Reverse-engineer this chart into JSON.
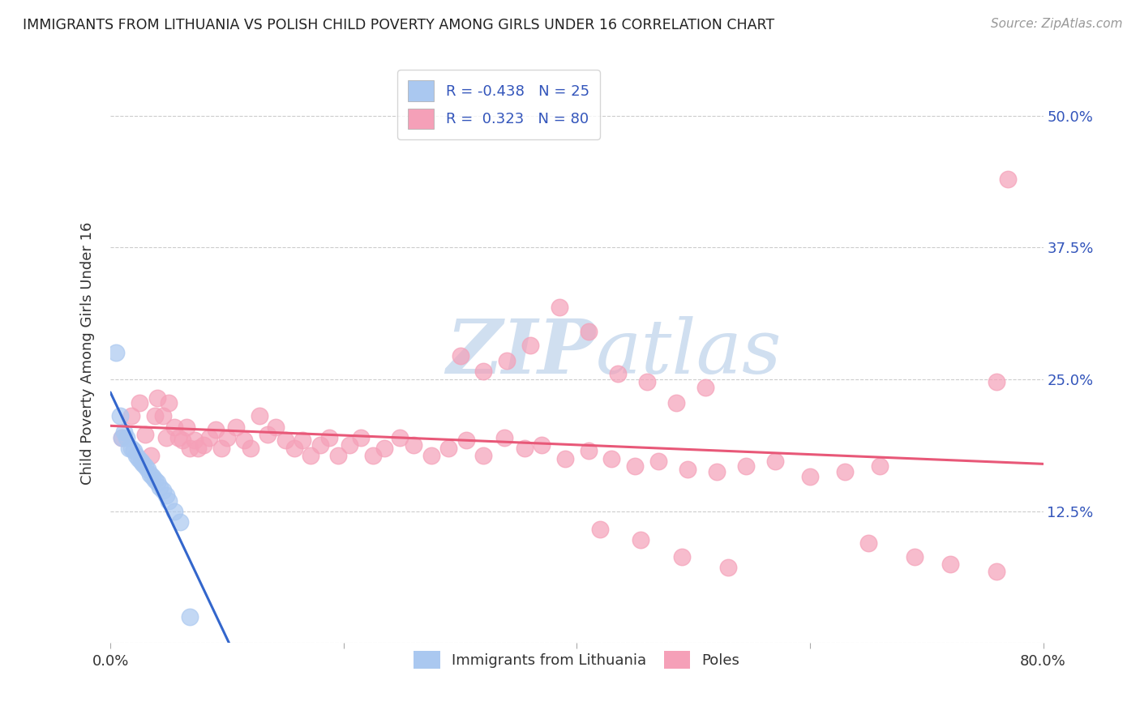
{
  "title": "IMMIGRANTS FROM LITHUANIA VS POLISH CHILD POVERTY AMONG GIRLS UNDER 16 CORRELATION CHART",
  "source": "Source: ZipAtlas.com",
  "ylabel": "Child Poverty Among Girls Under 16",
  "xlabel_legend_1": "Immigrants from Lithuania",
  "xlabel_legend_2": "Poles",
  "r_lithuania": -0.438,
  "n_lithuania": 25,
  "r_poles": 0.323,
  "n_poles": 80,
  "xlim": [
    0.0,
    0.8
  ],
  "ylim": [
    0.0,
    0.55
  ],
  "color_lithuania": "#aac8f0",
  "color_poles": "#f5a0b8",
  "line_color_lithuania": "#3366cc",
  "line_color_poles": "#e85878",
  "watermark_color": "#d0dff0",
  "background_color": "#ffffff",
  "legend_text_color": "#3355bb",
  "lithuania_x": [
    0.005,
    0.008,
    0.01,
    0.012,
    0.014,
    0.016,
    0.018,
    0.02,
    0.022,
    0.024,
    0.026,
    0.028,
    0.03,
    0.032,
    0.034,
    0.036,
    0.038,
    0.04,
    0.042,
    0.045,
    0.048,
    0.05,
    0.055,
    0.06,
    0.068
  ],
  "lithuania_y": [
    0.275,
    0.215,
    0.195,
    0.2,
    0.195,
    0.185,
    0.185,
    0.182,
    0.178,
    0.175,
    0.172,
    0.17,
    0.168,
    0.165,
    0.16,
    0.158,
    0.155,
    0.152,
    0.148,
    0.145,
    0.14,
    0.135,
    0.125,
    0.115,
    0.025
  ],
  "poles_x": [
    0.01,
    0.018,
    0.025,
    0.03,
    0.035,
    0.038,
    0.04,
    0.045,
    0.048,
    0.05,
    0.055,
    0.058,
    0.062,
    0.065,
    0.068,
    0.072,
    0.075,
    0.08,
    0.085,
    0.09,
    0.095,
    0.1,
    0.108,
    0.115,
    0.12,
    0.128,
    0.135,
    0.142,
    0.15,
    0.158,
    0.165,
    0.172,
    0.18,
    0.188,
    0.195,
    0.205,
    0.215,
    0.225,
    0.235,
    0.248,
    0.26,
    0.275,
    0.29,
    0.305,
    0.32,
    0.338,
    0.355,
    0.37,
    0.39,
    0.41,
    0.43,
    0.45,
    0.47,
    0.495,
    0.52,
    0.545,
    0.57,
    0.6,
    0.63,
    0.66,
    0.3,
    0.32,
    0.34,
    0.36,
    0.385,
    0.41,
    0.435,
    0.46,
    0.485,
    0.51,
    0.42,
    0.455,
    0.49,
    0.53,
    0.76,
    0.65,
    0.69,
    0.72,
    0.76,
    0.77
  ],
  "poles_y": [
    0.195,
    0.215,
    0.228,
    0.198,
    0.178,
    0.215,
    0.232,
    0.215,
    0.195,
    0.228,
    0.205,
    0.195,
    0.192,
    0.205,
    0.185,
    0.192,
    0.185,
    0.188,
    0.195,
    0.202,
    0.185,
    0.195,
    0.205,
    0.192,
    0.185,
    0.215,
    0.198,
    0.205,
    0.192,
    0.185,
    0.192,
    0.178,
    0.188,
    0.195,
    0.178,
    0.188,
    0.195,
    0.178,
    0.185,
    0.195,
    0.188,
    0.178,
    0.185,
    0.192,
    0.178,
    0.195,
    0.185,
    0.188,
    0.175,
    0.182,
    0.175,
    0.168,
    0.172,
    0.165,
    0.162,
    0.168,
    0.172,
    0.158,
    0.162,
    0.168,
    0.272,
    0.258,
    0.268,
    0.282,
    0.318,
    0.295,
    0.255,
    0.248,
    0.228,
    0.242,
    0.108,
    0.098,
    0.082,
    0.072,
    0.068,
    0.095,
    0.082,
    0.075,
    0.248,
    0.44
  ]
}
